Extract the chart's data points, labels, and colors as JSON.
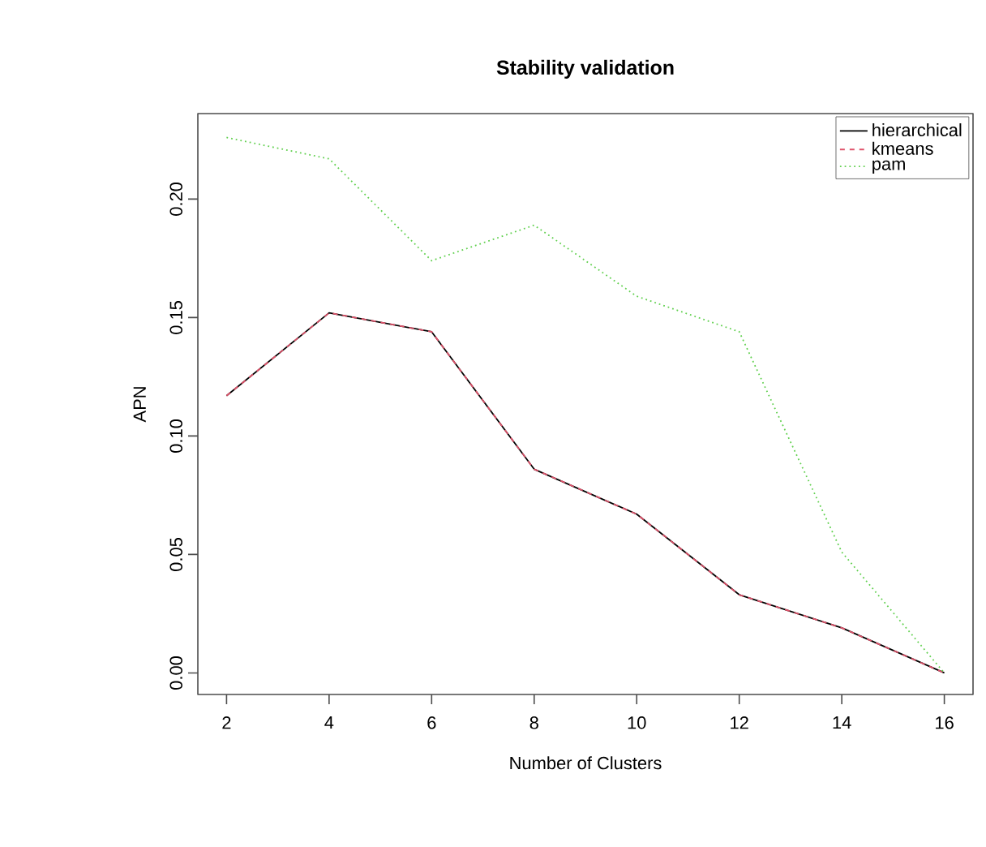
{
  "chart_data": {
    "type": "line",
    "title": "Stability validation",
    "xlabel": "Number of Clusters",
    "ylabel": "APN",
    "x": [
      2,
      4,
      6,
      8,
      10,
      12,
      14,
      16
    ],
    "series": [
      {
        "name": "hierarchical",
        "color": "#000000",
        "line_style": "solid",
        "values": [
          0.117,
          0.152,
          0.144,
          0.086,
          0.067,
          0.033,
          0.019,
          0.0
        ]
      },
      {
        "name": "kmeans",
        "color": "#df536b",
        "line_style": "dashed",
        "values": [
          0.117,
          0.152,
          0.144,
          0.086,
          0.067,
          0.033,
          0.019,
          0.0
        ]
      },
      {
        "name": "pam",
        "color": "#61d04f",
        "line_style": "dotted",
        "values": [
          0.226,
          0.217,
          0.174,
          0.189,
          0.159,
          0.144,
          0.051,
          0.0
        ]
      }
    ],
    "xlim": [
      1.44,
      16.56
    ],
    "ylim": [
      -0.0091,
      0.2361
    ],
    "xticks": [
      2,
      4,
      6,
      8,
      10,
      12,
      14,
      16
    ],
    "yticks": [
      {
        "value": 0,
        "label": "0.00"
      },
      {
        "value": 0.05,
        "label": "0.05"
      },
      {
        "value": 0.1,
        "label": "0.10"
      },
      {
        "value": 0.15,
        "label": "0.15"
      },
      {
        "value": 0.2,
        "label": "0.20"
      }
    ],
    "legend": "top right",
    "grid": false
  }
}
